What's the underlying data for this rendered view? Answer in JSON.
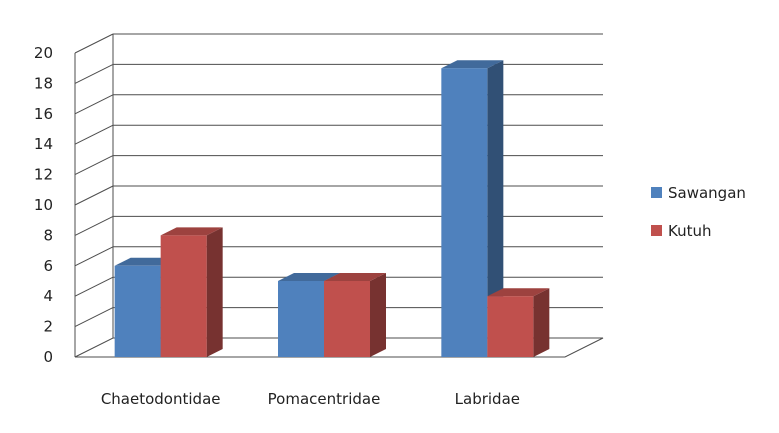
{
  "chart_data": {
    "type": "bar",
    "categories": [
      "Chaetodontidae",
      "Pomacentridae",
      "Labridae"
    ],
    "series": [
      {
        "name": "Sawangan",
        "values": [
          6,
          5,
          19
        ],
        "color": "#4F81BD"
      },
      {
        "name": "Kutuh",
        "values": [
          8,
          5,
          4
        ],
        "color": "#C0504D"
      }
    ],
    "ylim": [
      0,
      20
    ],
    "yticks": [
      0,
      2,
      4,
      6,
      8,
      10,
      12,
      14,
      16,
      18,
      20
    ],
    "grid": true,
    "legend": "right",
    "style": "3d-clustered-column"
  }
}
